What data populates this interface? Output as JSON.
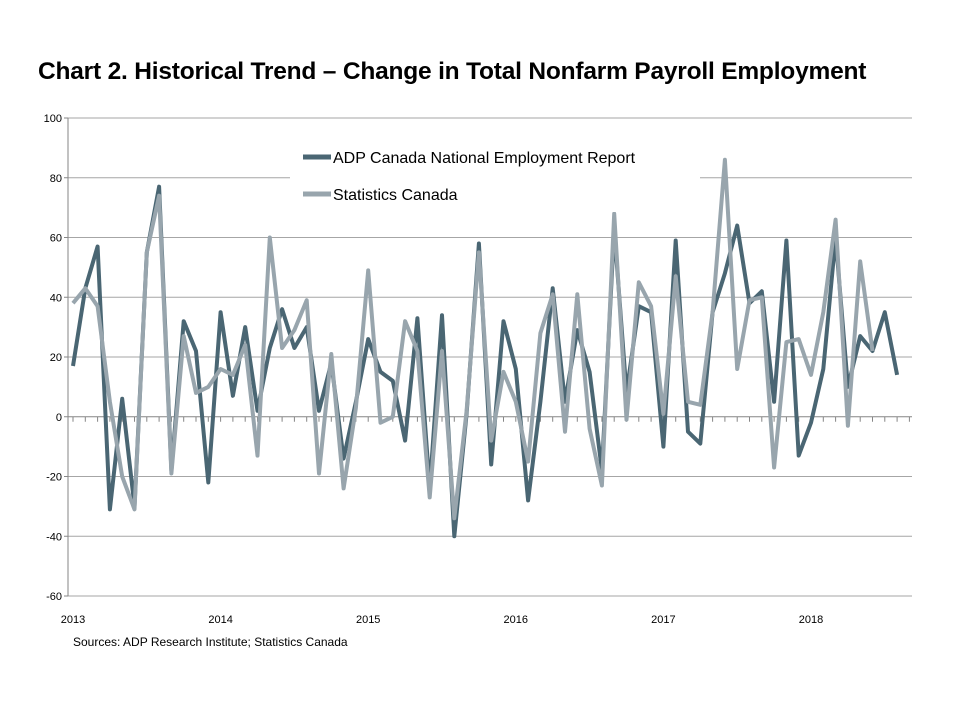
{
  "title": "Chart 2. Historical Trend – Change in Total Nonfarm Payroll Employment",
  "source": "Sources: ADP Research Institute; Statistics Canada",
  "colors": {
    "adp": "#4a6673",
    "statcan": "#98a5ad",
    "grid": "#a6a6a6",
    "axis": "#868686"
  },
  "chart_data": {
    "type": "line",
    "title": "Chart 2. Historical Trend – Change in Total Nonfarm Payroll Employment",
    "xlabel": "",
    "ylabel": "",
    "ylim": [
      -60,
      100
    ],
    "yticks": [
      100,
      80,
      60,
      40,
      20,
      0,
      -20,
      -40,
      -60
    ],
    "xticks": [
      "2013",
      "2014",
      "2015",
      "2016",
      "2017",
      "2018"
    ],
    "x_start": "2013-01",
    "grid": "horizontal",
    "legend": "top-center",
    "series": [
      {
        "name": "ADP Canada National Employment Report",
        "color": "#4a6673",
        "values": [
          17,
          43,
          57,
          -31,
          6,
          -30,
          55,
          77,
          -18,
          32,
          22,
          -22,
          35,
          7,
          30,
          2,
          23,
          36,
          23,
          30,
          2,
          18,
          -14,
          5,
          26,
          15,
          12,
          -8,
          33,
          -24,
          34,
          -40,
          1,
          58,
          -16,
          32,
          16,
          -28,
          5,
          43,
          5,
          29,
          15,
          -18,
          63,
          8,
          37,
          35,
          -10,
          59,
          -5,
          -9,
          35,
          48,
          64,
          38,
          42,
          5,
          59,
          -13,
          -2,
          16,
          60,
          10,
          27,
          22,
          35,
          14
        ]
      },
      {
        "name": "Statistics Canada",
        "color": "#98a5ad",
        "values": [
          38,
          43,
          37,
          5,
          -20,
          -31,
          55,
          74,
          -19,
          27,
          8,
          10,
          16,
          14,
          24,
          -13,
          60,
          23,
          29,
          39,
          -19,
          21,
          -24,
          3,
          49,
          -2,
          0,
          32,
          22,
          -27,
          22,
          -34,
          2,
          55,
          -8,
          15,
          5,
          -15,
          28,
          41,
          -5,
          41,
          -4,
          -23,
          68,
          -1,
          45,
          37,
          1,
          47,
          5,
          4,
          35,
          86,
          16,
          39,
          40,
          -17,
          25,
          26,
          14,
          35,
          66,
          -3,
          52,
          22
        ]
      }
    ]
  }
}
